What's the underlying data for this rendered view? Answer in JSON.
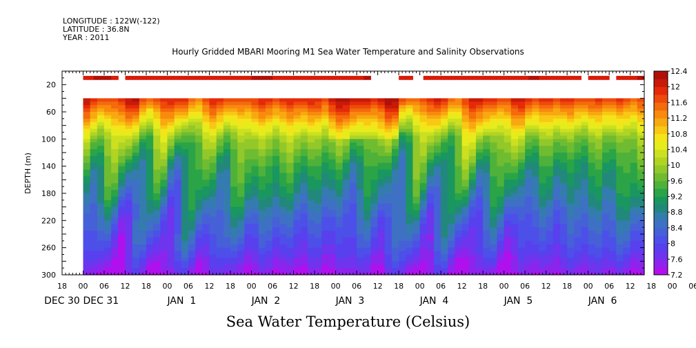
{
  "header": {
    "longitude": "LONGITUDE : 122W(-122)",
    "latitude": "LATITUDE : 36.8N",
    "year": "YEAR : 2011"
  },
  "chart_data": {
    "type": "heatmap",
    "title": "Hourly Gridded MBARI Mooring M1 Sea Water Temperature and Salinity Observations",
    "xlabel": "Sea Water Temperature (Celsius)",
    "ylabel": "DEPTH (m)",
    "x_axis": {
      "range_hours": [
        -6,
        160
      ],
      "hour_tick_labels": [
        "18",
        "00",
        "06",
        "12",
        "18",
        "00",
        "06",
        "12",
        "18",
        "00",
        "06",
        "12",
        "18",
        "00",
        "06",
        "12",
        "18",
        "00",
        "06",
        "12",
        "18",
        "00",
        "06",
        "12",
        "18",
        "00",
        "06",
        "12",
        "18",
        "00",
        "06",
        "12"
      ],
      "day_labels": [
        "DEC 30",
        "DEC 31",
        "JAN  1",
        "JAN  2",
        "JAN  3",
        "JAN  4",
        "JAN  5",
        "JAN  6"
      ]
    },
    "y_axis": {
      "range": [
        300,
        0
      ],
      "inverted": true,
      "tick_labels": [
        "20",
        "60",
        "100",
        "140",
        "180",
        "220",
        "260",
        "300"
      ]
    },
    "colorbar": {
      "levels": [
        7.2,
        7.4,
        7.6,
        7.8,
        8.0,
        8.2,
        8.4,
        8.6,
        8.8,
        9.0,
        9.2,
        9.4,
        9.6,
        9.8,
        10.0,
        10.2,
        10.4,
        10.6,
        10.8,
        11.0,
        11.2,
        11.4,
        11.6,
        11.8,
        12.0,
        12.2,
        12.4
      ],
      "tick_labels": [
        "12.4",
        "12",
        "11.6",
        "11.2",
        "10.8",
        "10.4",
        "10",
        "9.6",
        "9.2",
        "8.8",
        "8.4",
        "8",
        "7.6",
        "7.2"
      ],
      "colors": [
        "#b010ee",
        "#8c24ee",
        "#6e34ee",
        "#5840ee",
        "#4c50e8",
        "#4660d8",
        "#3e70c4",
        "#347cae",
        "#22887c",
        "#1a9660",
        "#2aa446",
        "#4eb23a",
        "#70bc30",
        "#92c82a",
        "#b0d424",
        "#cce020",
        "#e6ec1c",
        "#f4e41a",
        "#f8c814",
        "#f8a810",
        "#f88a0e",
        "#f46a0c",
        "#ee4a0a",
        "#e42a08",
        "#c81a08",
        "#b01008"
      ]
    },
    "surface_bar": {
      "depth_m": 10,
      "value_range": [
        12.0,
        12.4
      ],
      "gaps_hours": [
        [
          10,
          12
        ],
        [
          82,
          90
        ],
        [
          94,
          97
        ],
        [
          142,
          144
        ],
        [
          150,
          152
        ]
      ]
    },
    "data_start_depth_m": 40,
    "profile_reference": [
      {
        "depth": 40,
        "temperature": 11.9
      },
      {
        "depth": 60,
        "temperature": 11.2
      },
      {
        "depth": 100,
        "temperature": 9.9
      },
      {
        "depth": 140,
        "temperature": 9.3
      },
      {
        "depth": 180,
        "temperature": 8.9
      },
      {
        "depth": 220,
        "temperature": 8.4
      },
      {
        "depth": 260,
        "temperature": 8.0
      },
      {
        "depth": 300,
        "temperature": 7.4
      }
    ]
  }
}
